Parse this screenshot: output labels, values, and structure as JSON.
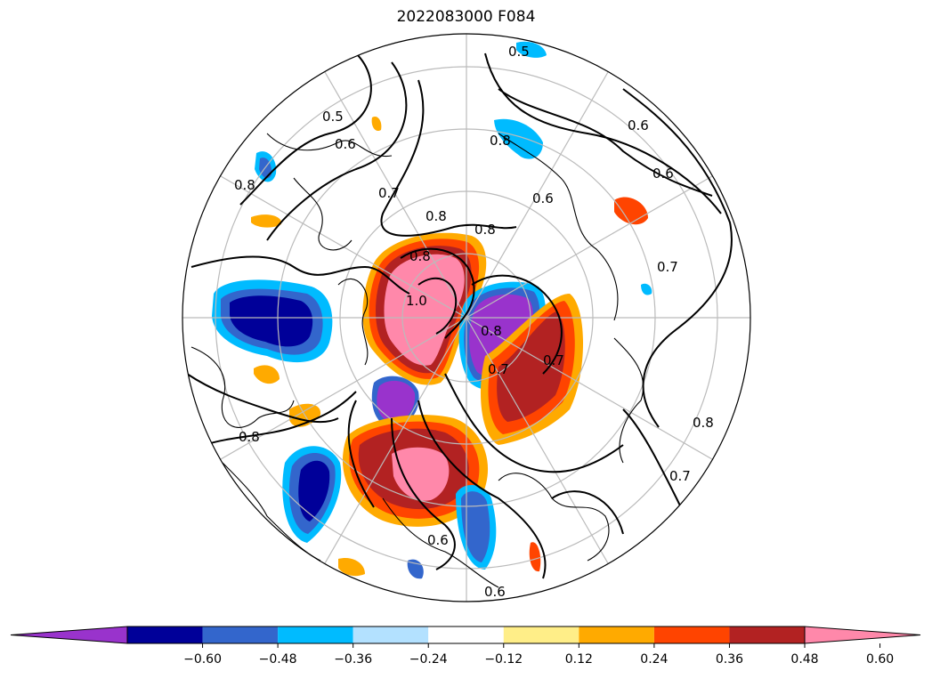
{
  "title": "2022083000 F084",
  "colorbar": {
    "colors": [
      "#9933cc",
      "#000099",
      "#3366cc",
      "#00bbff",
      "#b3e1ff",
      "#ffffff",
      "#ffee88",
      "#ffaa00",
      "#ff4400",
      "#b22222",
      "#ff88aa"
    ],
    "ticks": [
      "−0.60",
      "−0.48",
      "−0.36",
      "−0.24",
      "−0.12",
      "0.12",
      "0.24",
      "0.36",
      "0.48",
      "0.60"
    ]
  },
  "contour_labels": [
    "0.5",
    "0.5",
    "0.6",
    "0.6",
    "0.6",
    "0.6",
    "0.7",
    "0.7",
    "0.7",
    "0.7",
    "0.8",
    "0.8",
    "0.8",
    "0.8",
    "0.8",
    "0.8",
    "0.8",
    "0.8",
    "1.0",
    "0.6",
    "0.6",
    "0.7"
  ]
}
